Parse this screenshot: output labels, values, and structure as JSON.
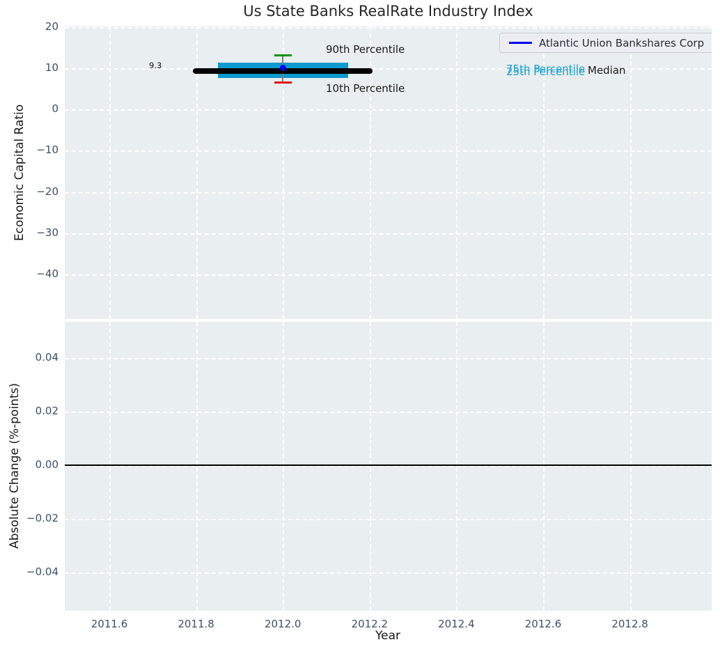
{
  "title": "Us State Banks RealRate Industry Index",
  "colors": {
    "plot_background": "#e9eef0",
    "grid": "#ffffff",
    "box_fill": "#0d9ace",
    "percentile_text": "#17a0d4",
    "median_line": "#000000",
    "p90_cap": "#0e930e",
    "p10_cap": "#dd1111",
    "company_marker": "#0000ee",
    "tick_text": "#3d5065",
    "zero_line": "#000000"
  },
  "top_chart": {
    "ylabel": "Economic Capital Ratio",
    "yticks": [
      {
        "v": 20,
        "label": "20"
      },
      {
        "v": 10,
        "label": "10"
      },
      {
        "v": 0,
        "label": "0"
      },
      {
        "v": -10,
        "label": "−10"
      },
      {
        "v": -20,
        "label": "−20"
      },
      {
        "v": -30,
        "label": "−30"
      },
      {
        "v": -40,
        "label": "−40"
      }
    ],
    "annotations": {
      "median_value_label": "9.3",
      "p90_label": "90th Percentile",
      "p10_label": "10th Percentile",
      "p75_label": "75th Percentile",
      "p25_label": "25th Percentile",
      "median_label": "Median"
    },
    "legend": {
      "label": "Atlantic Union Bankshares Corp"
    }
  },
  "bottom_chart": {
    "ylabel": "Absolute Change (%-points)",
    "xlabel": "Year",
    "yticks": [
      {
        "v": 0.04,
        "label": "0.04"
      },
      {
        "v": 0.02,
        "label": "0.02"
      },
      {
        "v": 0.0,
        "label": "0.00"
      },
      {
        "v": -0.02,
        "label": "−0.02"
      },
      {
        "v": -0.04,
        "label": "−0.04"
      }
    ],
    "xticks": [
      {
        "v": 2011.6,
        "label": "2011.6"
      },
      {
        "v": 2011.8,
        "label": "2011.8"
      },
      {
        "v": 2012.0,
        "label": "2012.0"
      },
      {
        "v": 2012.2,
        "label": "2012.2"
      },
      {
        "v": 2012.4,
        "label": "2012.4"
      },
      {
        "v": 2012.6,
        "label": "2012.6"
      },
      {
        "v": 2012.8,
        "label": "2012.8"
      }
    ]
  },
  "chart_data": [
    {
      "type": "box",
      "title": "Us State Banks RealRate Industry Index",
      "ylabel": "Economic Capital Ratio",
      "x_center": 2012.0,
      "percentiles": {
        "p90": 13.2,
        "p75": 11.4,
        "median": 9.3,
        "p25": 7.7,
        "p10": 6.5
      },
      "median_line_span_years": [
        2011.8,
        2012.2
      ],
      "box_span_years": [
        2011.85,
        2012.15
      ],
      "series": [
        {
          "name": "Atlantic Union Bankshares Corp",
          "x": [
            2012.0
          ],
          "y": [
            10.1
          ],
          "color": "#0000ee"
        }
      ],
      "annotations": [
        "9.3",
        "90th Percentile",
        "10th Percentile",
        "75th Percentile",
        "25th Percentile",
        "Median"
      ],
      "yticks": [
        20,
        10,
        0,
        -10,
        -20,
        -30,
        -40
      ],
      "ylim": [
        -50.6,
        20.9
      ],
      "xlim": [
        2011.5,
        2012.99
      ],
      "grid": true,
      "legend_position": "upper right"
    },
    {
      "type": "line",
      "ylabel": "Absolute Change (%-points)",
      "xlabel": "Year",
      "series": [
        {
          "name": "zero-reference-line",
          "y_constant": 0.0,
          "color": "#000000"
        }
      ],
      "yticks": [
        0.04,
        0.02,
        0.0,
        -0.02,
        -0.04
      ],
      "ylim": [
        -0.055,
        0.054
      ],
      "xticks": [
        2011.6,
        2011.8,
        2012.0,
        2012.2,
        2012.4,
        2012.6,
        2012.8
      ],
      "xlim": [
        2011.5,
        2012.99
      ],
      "grid": true
    }
  ]
}
